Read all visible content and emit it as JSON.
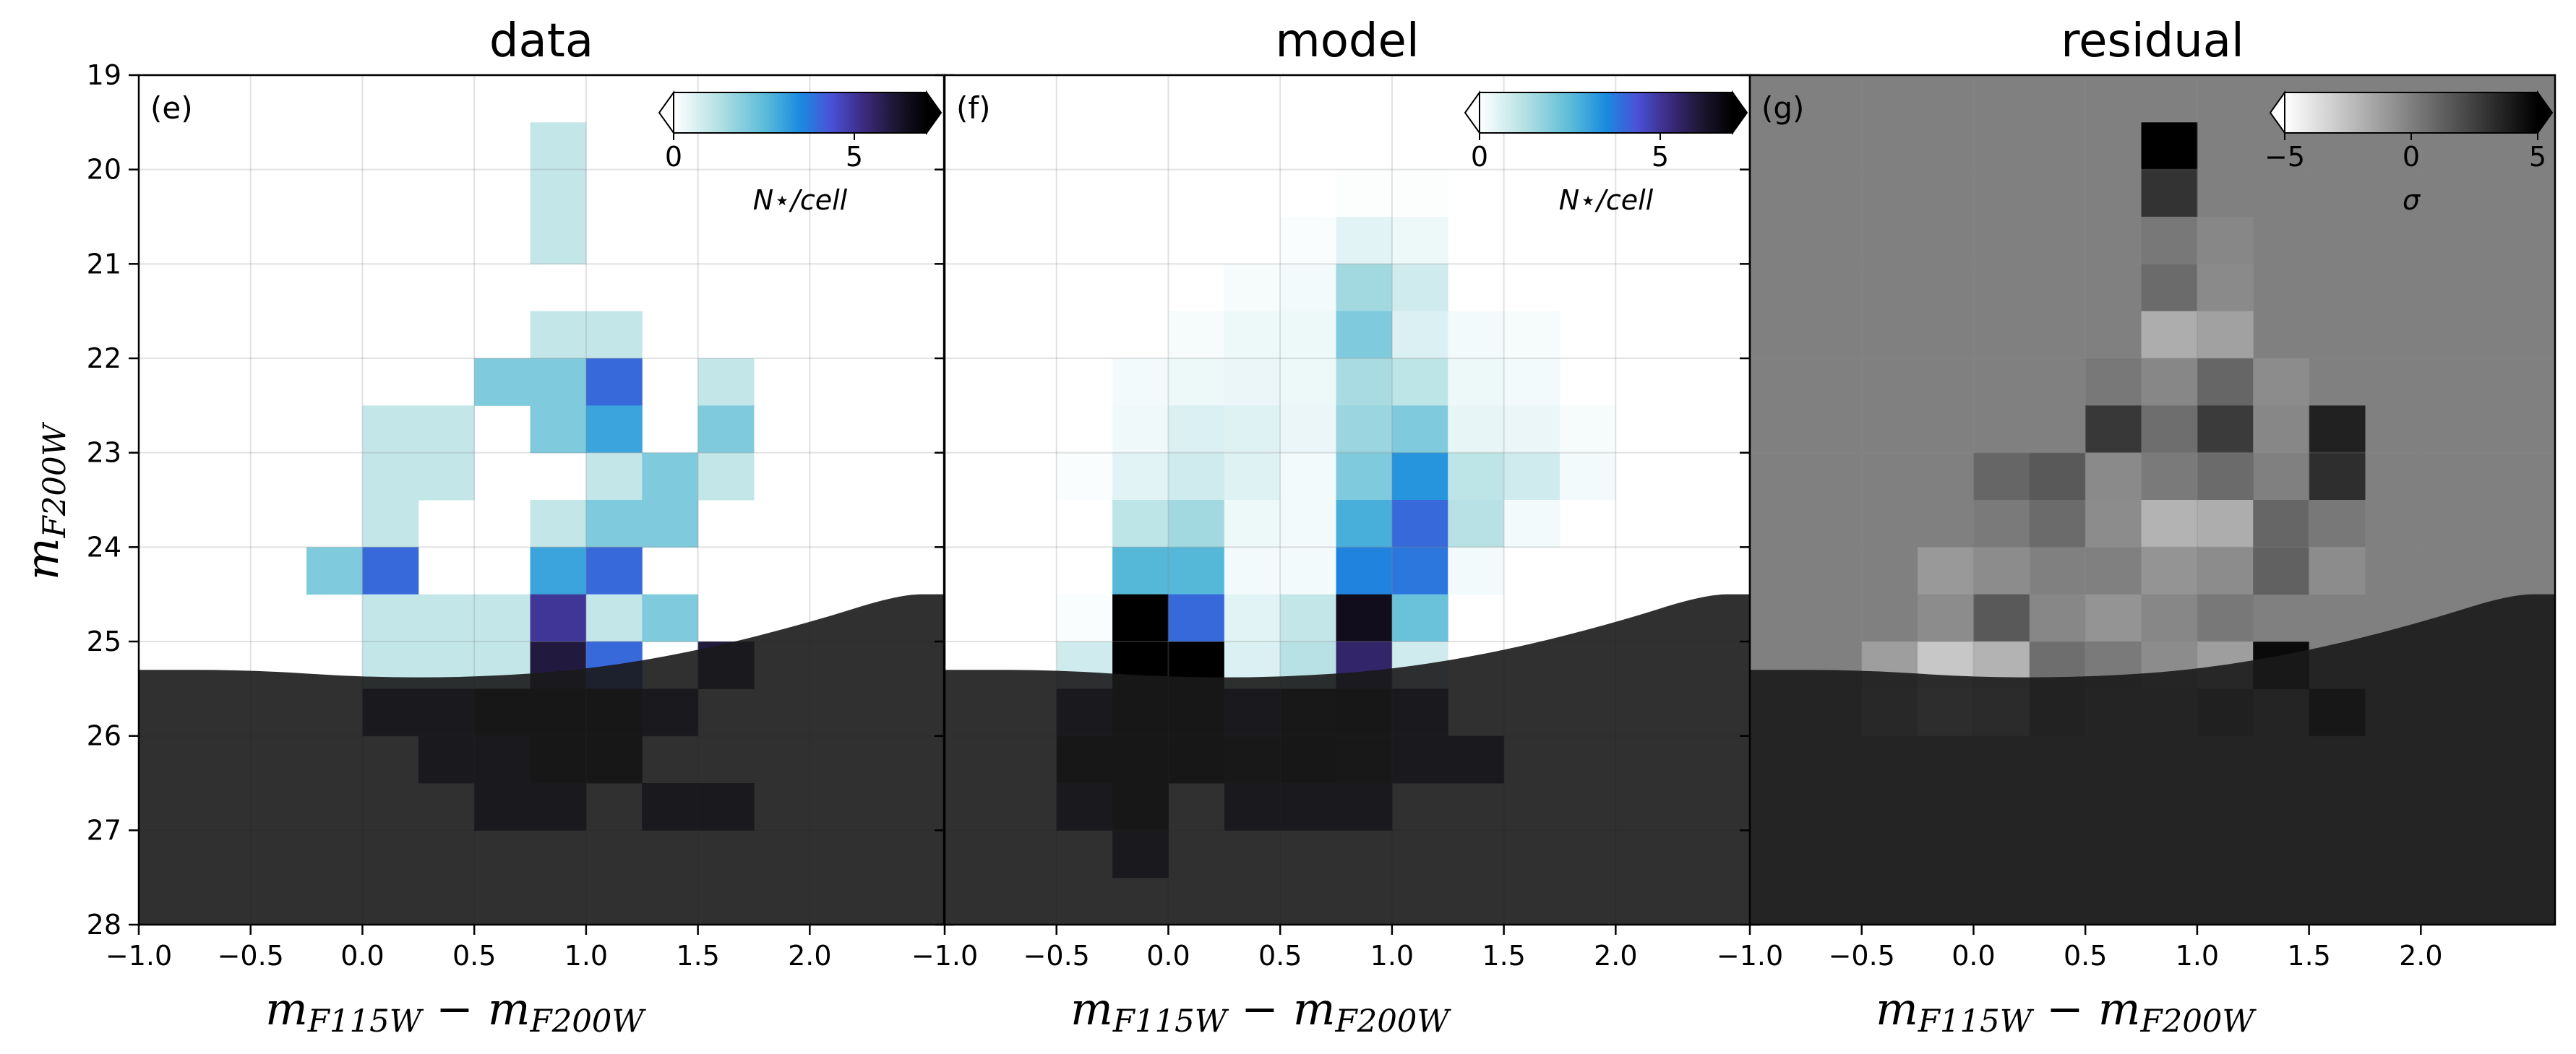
{
  "chart_data": {
    "type": "heatmap",
    "x_range": [
      -1.0,
      2.6
    ],
    "y_range": [
      28,
      19
    ],
    "cell_size_x": 0.25,
    "cell_size_y": 0.5,
    "x_ticks": [
      "−1.0",
      "−0.5",
      "0.0",
      "0.5",
      "1.0",
      "1.5",
      "2.0"
    ],
    "x_tick_values": [
      -1.0,
      -0.5,
      0.0,
      0.5,
      1.0,
      1.5,
      2.0
    ],
    "y_ticks": [
      "19",
      "20",
      "21",
      "22",
      "23",
      "24",
      "25",
      "26",
      "27",
      "28"
    ],
    "y_tick_values": [
      19,
      20,
      21,
      22,
      23,
      24,
      25,
      26,
      27,
      28
    ],
    "xlabel": {
      "m": "m",
      "s1": "F115W",
      "minus": " − ",
      "m2": "m",
      "s2": "F200W"
    },
    "ylabel": {
      "m": "m",
      "s": "F200W"
    },
    "completeness_limit": [
      [
        -1.0,
        25.3
      ],
      [
        -0.5,
        25.3
      ],
      [
        0.0,
        25.38
      ],
      [
        0.5,
        25.38
      ],
      [
        1.0,
        25.3
      ],
      [
        1.5,
        25.1
      ],
      [
        2.0,
        24.8
      ],
      [
        2.4,
        24.5
      ],
      [
        2.6,
        24.5
      ]
    ],
    "panels": [
      {
        "title": "data",
        "label": "(e)",
        "colormap": "ice",
        "colorbar": {
          "min": 0,
          "max": 7,
          "ticks": [
            "0",
            "5"
          ],
          "tick_values": [
            0,
            5
          ],
          "label": "N⋆/cell"
        },
        "cells": [
          [
            0.75,
            19.5,
            1
          ],
          [
            0.75,
            20.0,
            1
          ],
          [
            0.75,
            20.5,
            1
          ],
          [
            0.75,
            21.5,
            1
          ],
          [
            1.0,
            21.5,
            1
          ],
          [
            0.5,
            22.0,
            2
          ],
          [
            0.75,
            22.0,
            2
          ],
          [
            1.0,
            22.0,
            4
          ],
          [
            1.5,
            22.0,
            1
          ],
          [
            0.0,
            22.5,
            1
          ],
          [
            0.25,
            22.5,
            1
          ],
          [
            0.75,
            22.5,
            2
          ],
          [
            1.0,
            22.5,
            3
          ],
          [
            1.5,
            22.5,
            2
          ],
          [
            0.0,
            23.0,
            1
          ],
          [
            0.25,
            23.0,
            1
          ],
          [
            1.0,
            23.0,
            1
          ],
          [
            1.25,
            23.0,
            2
          ],
          [
            1.5,
            23.0,
            1
          ],
          [
            0.0,
            23.5,
            1
          ],
          [
            0.75,
            23.5,
            1
          ],
          [
            1.0,
            23.5,
            2
          ],
          [
            1.25,
            23.5,
            2
          ],
          [
            -0.25,
            24.0,
            2
          ],
          [
            0.0,
            24.0,
            4
          ],
          [
            0.75,
            24.0,
            3
          ],
          [
            1.0,
            24.0,
            4
          ],
          [
            0.0,
            24.5,
            1
          ],
          [
            0.25,
            24.5,
            1
          ],
          [
            0.5,
            24.5,
            1
          ],
          [
            0.75,
            24.5,
            5
          ],
          [
            1.0,
            24.5,
            1
          ],
          [
            1.25,
            24.5,
            2
          ],
          [
            0.0,
            25.0,
            1
          ],
          [
            0.25,
            25.0,
            1
          ],
          [
            0.5,
            25.0,
            1
          ],
          [
            0.75,
            25.0,
            6
          ],
          [
            1.0,
            25.0,
            4
          ],
          [
            1.5,
            25.0,
            6
          ],
          [
            0.0,
            25.5,
            6
          ],
          [
            0.25,
            25.5,
            6
          ],
          [
            0.5,
            25.5,
            7
          ],
          [
            0.75,
            25.5,
            7
          ],
          [
            1.0,
            25.5,
            7
          ],
          [
            1.25,
            25.5,
            6
          ],
          [
            0.25,
            26.0,
            6
          ],
          [
            0.5,
            26.0,
            6
          ],
          [
            0.75,
            26.0,
            7
          ],
          [
            1.0,
            26.0,
            7
          ],
          [
            0.5,
            26.5,
            6
          ],
          [
            0.75,
            26.5,
            6
          ],
          [
            1.25,
            26.5,
            6
          ],
          [
            1.5,
            26.5,
            6
          ]
        ]
      },
      {
        "title": "model",
        "label": "(f)",
        "colormap": "ice",
        "colorbar": {
          "min": 0,
          "max": 7,
          "ticks": [
            "0",
            "5"
          ],
          "tick_values": [
            0,
            5
          ],
          "label": "N⋆/cell"
        },
        "cells": [
          [
            0.75,
            20.0,
            0.05
          ],
          [
            1.0,
            20.0,
            0.05
          ],
          [
            0.5,
            20.5,
            0.1
          ],
          [
            0.75,
            20.5,
            0.5
          ],
          [
            1.0,
            20.5,
            0.3
          ],
          [
            0.25,
            21.0,
            0.15
          ],
          [
            0.5,
            21.0,
            0.2
          ],
          [
            0.75,
            21.0,
            1.5
          ],
          [
            1.0,
            21.0,
            0.8
          ],
          [
            0.0,
            21.5,
            0.15
          ],
          [
            0.25,
            21.5,
            0.3
          ],
          [
            0.5,
            21.5,
            0.3
          ],
          [
            0.75,
            21.5,
            2.0
          ],
          [
            1.0,
            21.5,
            0.6
          ],
          [
            1.25,
            21.5,
            0.2
          ],
          [
            1.5,
            21.5,
            0.15
          ],
          [
            -0.25,
            22.0,
            0.2
          ],
          [
            0.0,
            22.0,
            0.3
          ],
          [
            0.25,
            22.0,
            0.35
          ],
          [
            0.5,
            22.0,
            0.3
          ],
          [
            0.75,
            22.0,
            1.4
          ],
          [
            1.0,
            22.0,
            1.1
          ],
          [
            1.25,
            22.0,
            0.3
          ],
          [
            1.5,
            22.0,
            0.2
          ],
          [
            -0.25,
            22.5,
            0.25
          ],
          [
            0.0,
            22.5,
            0.6
          ],
          [
            0.25,
            22.5,
            0.55
          ],
          [
            0.5,
            22.5,
            0.35
          ],
          [
            0.75,
            22.5,
            1.6
          ],
          [
            1.0,
            22.5,
            2.0
          ],
          [
            1.25,
            22.5,
            0.4
          ],
          [
            1.5,
            22.5,
            0.35
          ],
          [
            1.75,
            22.5,
            0.15
          ],
          [
            -0.5,
            23.0,
            0.1
          ],
          [
            -0.25,
            23.0,
            0.5
          ],
          [
            0.0,
            23.0,
            0.8
          ],
          [
            0.25,
            23.0,
            0.55
          ],
          [
            0.5,
            23.0,
            0.2
          ],
          [
            0.75,
            23.0,
            2.0
          ],
          [
            1.0,
            23.0,
            3.3
          ],
          [
            1.25,
            23.0,
            1.1
          ],
          [
            1.5,
            23.0,
            0.8
          ],
          [
            1.75,
            23.0,
            0.2
          ],
          [
            -0.25,
            23.5,
            1.1
          ],
          [
            0.0,
            23.5,
            1.5
          ],
          [
            0.25,
            23.5,
            0.3
          ],
          [
            0.5,
            23.5,
            0.2
          ],
          [
            0.75,
            23.5,
            2.8
          ],
          [
            1.0,
            23.5,
            4.0
          ],
          [
            1.25,
            23.5,
            1.2
          ],
          [
            1.5,
            23.5,
            0.2
          ],
          [
            -0.25,
            24.0,
            2.6
          ],
          [
            0.0,
            24.0,
            2.6
          ],
          [
            0.25,
            24.0,
            0.2
          ],
          [
            0.5,
            24.0,
            0.2
          ],
          [
            0.75,
            24.0,
            3.6
          ],
          [
            1.0,
            24.0,
            3.8
          ],
          [
            1.25,
            24.0,
            0.2
          ],
          [
            -0.5,
            24.5,
            0.1
          ],
          [
            -0.25,
            24.5,
            7
          ],
          [
            0.0,
            24.5,
            4.0
          ],
          [
            0.25,
            24.5,
            0.5
          ],
          [
            0.5,
            24.5,
            1.0
          ],
          [
            0.75,
            24.5,
            6.5
          ],
          [
            1.0,
            24.5,
            2.3
          ],
          [
            -0.5,
            25.0,
            0.8
          ],
          [
            -0.25,
            25.0,
            7
          ],
          [
            0.0,
            25.0,
            7
          ],
          [
            0.25,
            25.0,
            0.6
          ],
          [
            0.5,
            25.0,
            1.2
          ],
          [
            0.75,
            25.0,
            5.5
          ],
          [
            1.0,
            25.0,
            0.8
          ],
          [
            -0.5,
            25.5,
            6
          ],
          [
            -0.25,
            25.5,
            7
          ],
          [
            0.0,
            25.5,
            7
          ],
          [
            0.25,
            25.5,
            6
          ],
          [
            0.5,
            25.5,
            6.5
          ],
          [
            0.75,
            25.5,
            7
          ],
          [
            1.0,
            25.5,
            6
          ],
          [
            -0.5,
            26.0,
            7
          ],
          [
            -0.25,
            26.0,
            7
          ],
          [
            0.0,
            26.0,
            7
          ],
          [
            0.25,
            26.0,
            6.5
          ],
          [
            0.5,
            26.0,
            7
          ],
          [
            0.75,
            26.0,
            6.5
          ],
          [
            1.0,
            26.0,
            6
          ],
          [
            1.25,
            26.0,
            6
          ],
          [
            -0.5,
            26.5,
            6
          ],
          [
            -0.25,
            26.5,
            7
          ],
          [
            0.25,
            26.5,
            6
          ],
          [
            0.5,
            26.5,
            6
          ],
          [
            0.75,
            26.5,
            6
          ],
          [
            -0.25,
            27.0,
            6
          ]
        ]
      },
      {
        "title": "residual",
        "label": "(g)",
        "colormap": "gray_r",
        "colorbar": {
          "min": -5,
          "max": 5,
          "ticks": [
            "−5",
            "0",
            "5"
          ],
          "tick_values": [
            -5,
            0,
            5
          ],
          "label": "σ"
        },
        "cells": [
          [
            0.75,
            19.5,
            5.0
          ],
          [
            0.75,
            20.0,
            3.0
          ],
          [
            0.75,
            20.5,
            0.3
          ],
          [
            1.0,
            20.5,
            -0.3
          ],
          [
            0.75,
            21.0,
            0.8
          ],
          [
            1.0,
            21.0,
            -0.4
          ],
          [
            0.75,
            21.5,
            -1.8
          ],
          [
            1.0,
            21.5,
            -1.3
          ],
          [
            0.5,
            22.0,
            0.3
          ],
          [
            0.75,
            22.0,
            -0.3
          ],
          [
            1.0,
            22.0,
            1.0
          ],
          [
            1.25,
            22.0,
            -0.5
          ],
          [
            0.5,
            22.5,
            2.8
          ],
          [
            0.75,
            22.5,
            0.7
          ],
          [
            1.0,
            22.5,
            2.7
          ],
          [
            1.25,
            22.5,
            -0.3
          ],
          [
            1.5,
            22.5,
            3.7
          ],
          [
            0.0,
            23.0,
            1.0
          ],
          [
            0.25,
            23.0,
            1.5
          ],
          [
            0.5,
            23.0,
            -0.4
          ],
          [
            0.75,
            23.0,
            0.2
          ],
          [
            1.0,
            23.0,
            0.8
          ],
          [
            1.5,
            23.0,
            3.2
          ],
          [
            0.0,
            23.5,
            0.2
          ],
          [
            0.25,
            23.5,
            0.8
          ],
          [
            0.5,
            23.5,
            -0.5
          ],
          [
            0.75,
            23.5,
            -2.0
          ],
          [
            1.0,
            23.5,
            -1.8
          ],
          [
            1.25,
            23.5,
            1.0
          ],
          [
            1.5,
            23.5,
            0.3
          ],
          [
            -0.25,
            24.0,
            -1.0
          ],
          [
            0.0,
            24.0,
            -0.5
          ],
          [
            0.75,
            24.0,
            -0.8
          ],
          [
            1.0,
            24.0,
            -0.5
          ],
          [
            1.25,
            24.0,
            1.2
          ],
          [
            1.5,
            24.0,
            -0.5
          ],
          [
            -0.25,
            24.5,
            -0.5
          ],
          [
            0.0,
            24.5,
            1.5
          ],
          [
            0.25,
            24.5,
            -0.3
          ],
          [
            0.5,
            24.5,
            -0.8
          ],
          [
            0.75,
            24.5,
            -0.3
          ],
          [
            1.0,
            24.5,
            0.3
          ],
          [
            -0.5,
            25.0,
            -1.2
          ],
          [
            -0.25,
            25.0,
            -2.8
          ],
          [
            0.0,
            25.0,
            -2.0
          ],
          [
            0.25,
            25.0,
            0.7
          ],
          [
            0.5,
            25.0,
            0.2
          ],
          [
            0.75,
            25.0,
            -0.5
          ],
          [
            1.0,
            25.0,
            -1.2
          ],
          [
            1.25,
            25.0,
            4.6
          ],
          [
            -0.5,
            25.5,
            -1.8
          ],
          [
            -0.25,
            25.5,
            -3.8
          ],
          [
            0.0,
            25.5,
            -3.0
          ],
          [
            0.25,
            25.5,
            0.5
          ],
          [
            0.5,
            25.5,
            -0.3
          ],
          [
            1.0,
            25.5,
            1.2
          ],
          [
            1.5,
            25.5,
            4.8
          ]
        ]
      }
    ]
  }
}
